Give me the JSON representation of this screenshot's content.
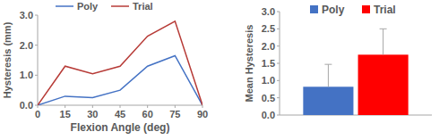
{
  "chart_data": [
    {
      "type": "line",
      "x": [
        0,
        15,
        30,
        45,
        60,
        75,
        90
      ],
      "xlabel": "Flexion Angle (deg)",
      "ylabel": "Hysteresis (mm)",
      "xlim": [
        0,
        90
      ],
      "xticks": [
        0,
        15,
        30,
        45,
        60,
        75,
        90
      ],
      "ylim": [
        0,
        3
      ],
      "yticks": [
        {
          "value": 0,
          "label": "0.0"
        },
        {
          "value": 1,
          "label": "1.0"
        },
        {
          "value": 2,
          "label": "2.0"
        },
        {
          "value": 3,
          "label": "3.0"
        }
      ],
      "grid": false,
      "legend": "top",
      "series": [
        {
          "name": "Poly",
          "color": "#4472c4",
          "values": [
            0,
            0.3,
            0.25,
            0.5,
            1.3,
            1.65,
            0
          ]
        },
        {
          "name": "Trial",
          "color": "#b73b37",
          "values": [
            0,
            1.3,
            1.05,
            1.3,
            2.3,
            2.8,
            0
          ]
        }
      ]
    },
    {
      "type": "bar",
      "categories": [
        null
      ],
      "ylabel": "Mean Hysteresis",
      "ylim": [
        0,
        3
      ],
      "yticks": [
        {
          "value": 0,
          "label": "0.0"
        },
        {
          "value": 0.5,
          "label": "0.5"
        },
        {
          "value": 1,
          "label": "1.0"
        },
        {
          "value": 1.5,
          "label": "1.5"
        },
        {
          "value": 2,
          "label": "2.0"
        },
        {
          "value": 2.5,
          "label": "2.5"
        },
        {
          "value": 3,
          "label": "3.0"
        }
      ],
      "grid": false,
      "legend": "top",
      "series": [
        {
          "name": "Poly",
          "color": "#4472c4",
          "values": [
            0.82
          ],
          "errors": [
            0.65
          ]
        },
        {
          "name": "Trial",
          "color": "#ff0000",
          "values": [
            1.75
          ],
          "errors": [
            0.75
          ]
        }
      ]
    }
  ]
}
